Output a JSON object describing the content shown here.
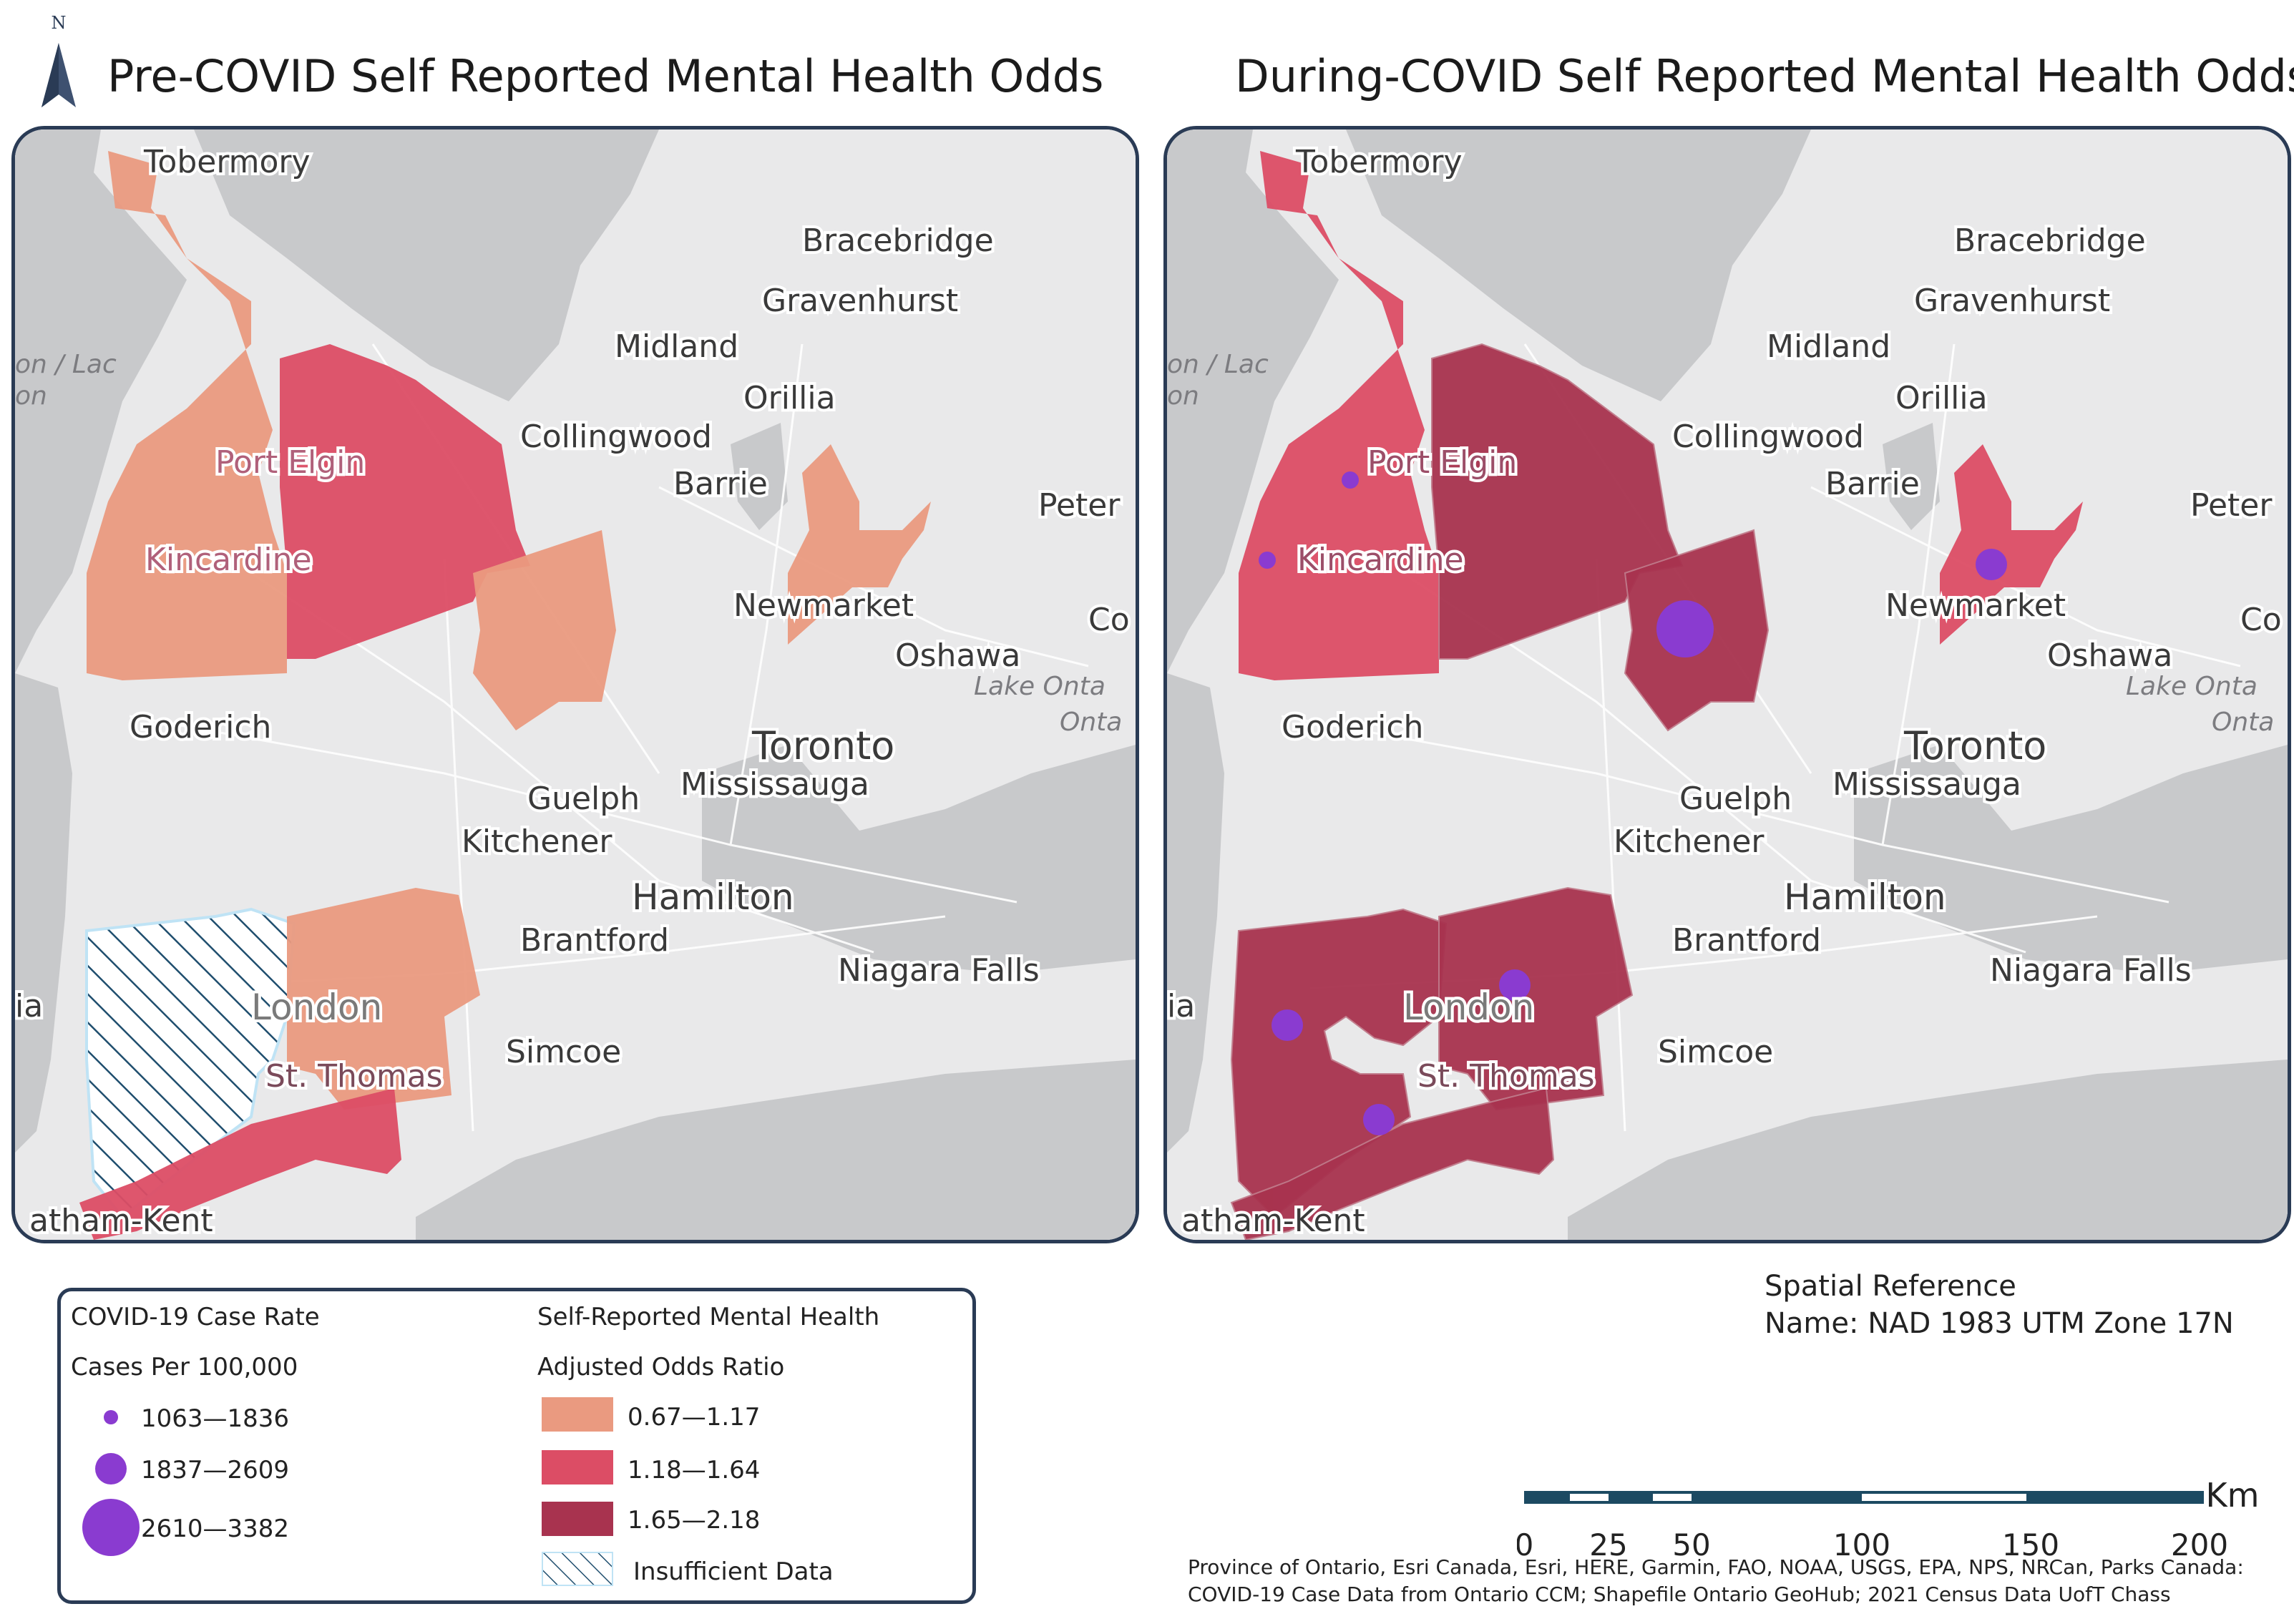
{
  "titles": {
    "left": "Pre-COVID Self Reported Mental Health Odds",
    "right": "During-COVID Self Reported Mental Health Odds"
  },
  "north_arrow": {
    "label": "N",
    "icon": "north-arrow-icon"
  },
  "place_labels": {
    "tobermory": "Tobermory",
    "bracebridge": "Bracebridge",
    "gravenhurst": "Gravenhurst",
    "midland": "Midland",
    "orillia": "Orillia",
    "collingwood": "Collingwood",
    "port_elgin": "Port Elgin",
    "barrie": "Barrie",
    "peter": "Peter",
    "kincardine": "Kincardine",
    "newmarket": "Newmarket",
    "oshawa": "Oshawa",
    "co": "Co",
    "lake_ont1": "Lake Onta",
    "lake_ont2": "Onta",
    "goderich": "Goderich",
    "toronto": "Toronto",
    "mississauga": "Mississauga",
    "guelph": "Guelph",
    "kitchener": "Kitchener",
    "hamilton": "Hamilton",
    "brantford": "Brantford",
    "niagara_falls": "Niagara Falls",
    "london": "London",
    "simcoe": "Simcoe",
    "st_thomas": "St. Thomas",
    "chatham_kent": "atham-Kent",
    "ia": "ia",
    "huron_lac": "on / Lac",
    "huron_on": "on"
  },
  "colors": {
    "odds_low": "#ea9a80",
    "odds_mid": "#dc4d65",
    "odds_high": "#a8334f",
    "case_dot": "#8a3bd0",
    "water": "#c8c9cb",
    "land": "#e9e9ea",
    "frame": "#2a3b55"
  },
  "legend": {
    "case_title_1": "COVID-19 Case Rate",
    "case_title_2": "Cases Per 100,000",
    "case_classes": [
      "1063—1836",
      "1837—2609",
      "2610—3382"
    ],
    "odds_title_1": "Self-Reported Mental Health",
    "odds_title_2": "Adjusted Odds Ratio",
    "odds_classes": [
      "0.67—1.17",
      "1.18—1.64",
      "1.65—2.18"
    ],
    "insufficient": "Insufficient Data"
  },
  "spatial_reference": {
    "line1": "Spatial Reference",
    "line2": "Name: NAD 1983 UTM Zone 17N"
  },
  "scale_bar": {
    "unit": "Km",
    "ticks": [
      "0",
      "25",
      "50",
      "100",
      "150",
      "200"
    ]
  },
  "credits": {
    "line1": "Province of Ontario, Esri Canada, Esri, HERE, Garmin, FAO, NOAA, USGS, EPA, NPS, NRCan, Parks Canada:",
    "line2": "COVID-19 Case Data from Ontario CCM; Shapefile Ontario GeoHub; 2021 Census Data UofT Chass"
  }
}
